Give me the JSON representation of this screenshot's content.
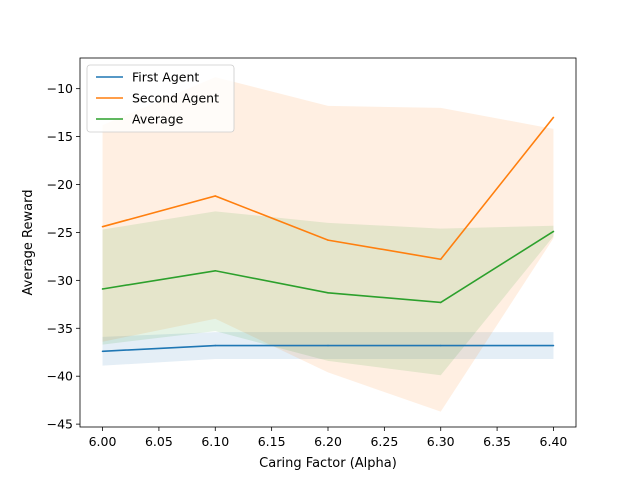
{
  "chart_data": {
    "type": "line",
    "title": "",
    "xlabel": "Caring Factor (Alpha)",
    "ylabel": "Average Reward",
    "x": [
      6.0,
      6.1,
      6.2,
      6.3,
      6.4
    ],
    "xlim": [
      5.98,
      6.42
    ],
    "ylim": [
      -45.3,
      -6.8
    ],
    "xticks": [
      6.0,
      6.05,
      6.1,
      6.15,
      6.2,
      6.25,
      6.3,
      6.35,
      6.4
    ],
    "xtick_labels": [
      "6.00",
      "6.05",
      "6.10",
      "6.15",
      "6.20",
      "6.25",
      "6.30",
      "6.35",
      "6.40"
    ],
    "yticks": [
      -45,
      -40,
      -35,
      -30,
      -25,
      -20,
      -15,
      -10
    ],
    "ytick_labels": [
      "−45",
      "−40",
      "−35",
      "−30",
      "−25",
      "−20",
      "−15",
      "−10"
    ],
    "grid": false,
    "legend_position": "top-left",
    "series": [
      {
        "name": "First Agent",
        "color": "#1f77b4",
        "values": [
          -37.4,
          -36.8,
          -36.8,
          -36.8,
          -36.8
        ],
        "band_upper": [
          -35.9,
          -35.4,
          -35.4,
          -35.4,
          -35.4
        ],
        "band_lower": [
          -38.9,
          -38.2,
          -38.2,
          -38.2,
          -38.2
        ]
      },
      {
        "name": "Second Agent",
        "color": "#ff7f0e",
        "values": [
          -24.4,
          -21.2,
          -25.8,
          -27.8,
          -13.0
        ],
        "band_upper": [
          -13.8,
          -8.8,
          -11.8,
          -12.0,
          -14.2
        ],
        "band_lower": [
          -36.4,
          -34.0,
          -39.6,
          -43.7,
          -25.6
        ]
      },
      {
        "name": "Average",
        "color": "#2ca02c",
        "values": [
          -30.9,
          -29.0,
          -31.3,
          -32.3,
          -24.9
        ],
        "band_upper": [
          -24.7,
          -22.8,
          -24.0,
          -24.6,
          -24.3
        ],
        "band_lower": [
          -36.7,
          -35.3,
          -38.4,
          -39.9,
          -25.4
        ]
      }
    ]
  }
}
